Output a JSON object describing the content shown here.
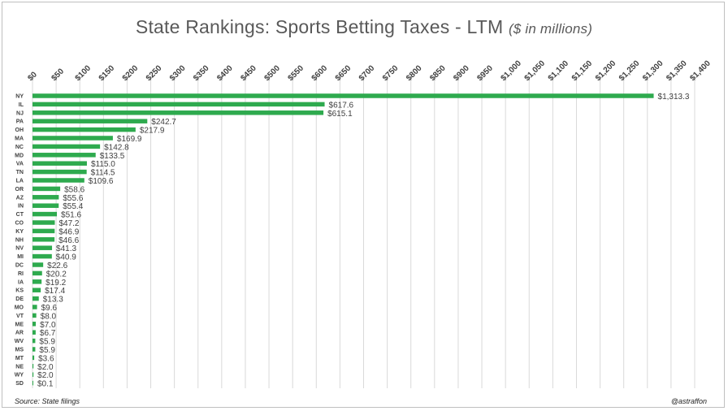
{
  "title": {
    "main": "State Rankings: Sports Betting Taxes - LTM",
    "sub": "($ in millions)"
  },
  "source": "Source: State filings",
  "handle": "@astraffon",
  "colors": {
    "bar": "#2eaa4e",
    "grid": "#d9d9d9",
    "label": "#404040"
  },
  "chart_data": {
    "type": "bar",
    "orientation": "horizontal",
    "categories": [
      "NY",
      "IL",
      "NJ",
      "PA",
      "OH",
      "MA",
      "NC",
      "MD",
      "VA",
      "TN",
      "LA",
      "OR",
      "AZ",
      "IN",
      "CT",
      "CO",
      "KY",
      "NH",
      "NV",
      "MI",
      "DC",
      "RI",
      "IA",
      "KS",
      "DE",
      "MO",
      "VT",
      "ME",
      "AR",
      "WV",
      "MS",
      "MT",
      "NE",
      "WY",
      "SD"
    ],
    "values": [
      1313.3,
      617.6,
      615.1,
      242.7,
      217.9,
      169.9,
      142.8,
      133.5,
      115.0,
      114.5,
      109.6,
      58.6,
      55.6,
      55.4,
      51.6,
      47.2,
      46.9,
      46.6,
      41.3,
      40.9,
      22.6,
      20.2,
      19.2,
      17.4,
      13.3,
      9.6,
      8.0,
      7.0,
      6.7,
      5.9,
      5.9,
      3.6,
      2.0,
      2.0,
      0.1
    ],
    "value_labels": [
      "$1,313.3",
      "$617.6",
      "$615.1",
      "$242.7",
      "$217.9",
      "$169.9",
      "$142.8",
      "$133.5",
      "$115.0",
      "$114.5",
      "$109.6",
      "$58.6",
      "$55.6",
      "$55.4",
      "$51.6",
      "$47.2",
      "$46.9",
      "$46.6",
      "$41.3",
      "$40.9",
      "$22.6",
      "$20.2",
      "$19.2",
      "$17.4",
      "$13.3",
      "$9.6",
      "$8.0",
      "$7.0",
      "$6.7",
      "$5.9",
      "$5.9",
      "$3.6",
      "$2.0",
      "$2.0",
      "$0.1"
    ],
    "xlim": [
      0,
      1400
    ],
    "x_ticks": [
      0,
      50,
      100,
      150,
      200,
      250,
      300,
      350,
      400,
      450,
      500,
      550,
      600,
      650,
      700,
      750,
      800,
      850,
      900,
      950,
      1000,
      1050,
      1100,
      1150,
      1200,
      1250,
      1300,
      1350,
      1400
    ],
    "x_tick_labels": [
      "$0",
      "$50",
      "$100",
      "$150",
      "$200",
      "$250",
      "$300",
      "$350",
      "$400",
      "$450",
      "$500",
      "$550",
      "$600",
      "$650",
      "$700",
      "$750",
      "$800",
      "$850",
      "$900",
      "$950",
      "$1,000",
      "$1,050",
      "$1,100",
      "$1,150",
      "$1,200",
      "$1,250",
      "$1,300",
      "$1,350",
      "$1,400"
    ],
    "x_axis_position": "top",
    "grid": true,
    "legend": "none"
  }
}
